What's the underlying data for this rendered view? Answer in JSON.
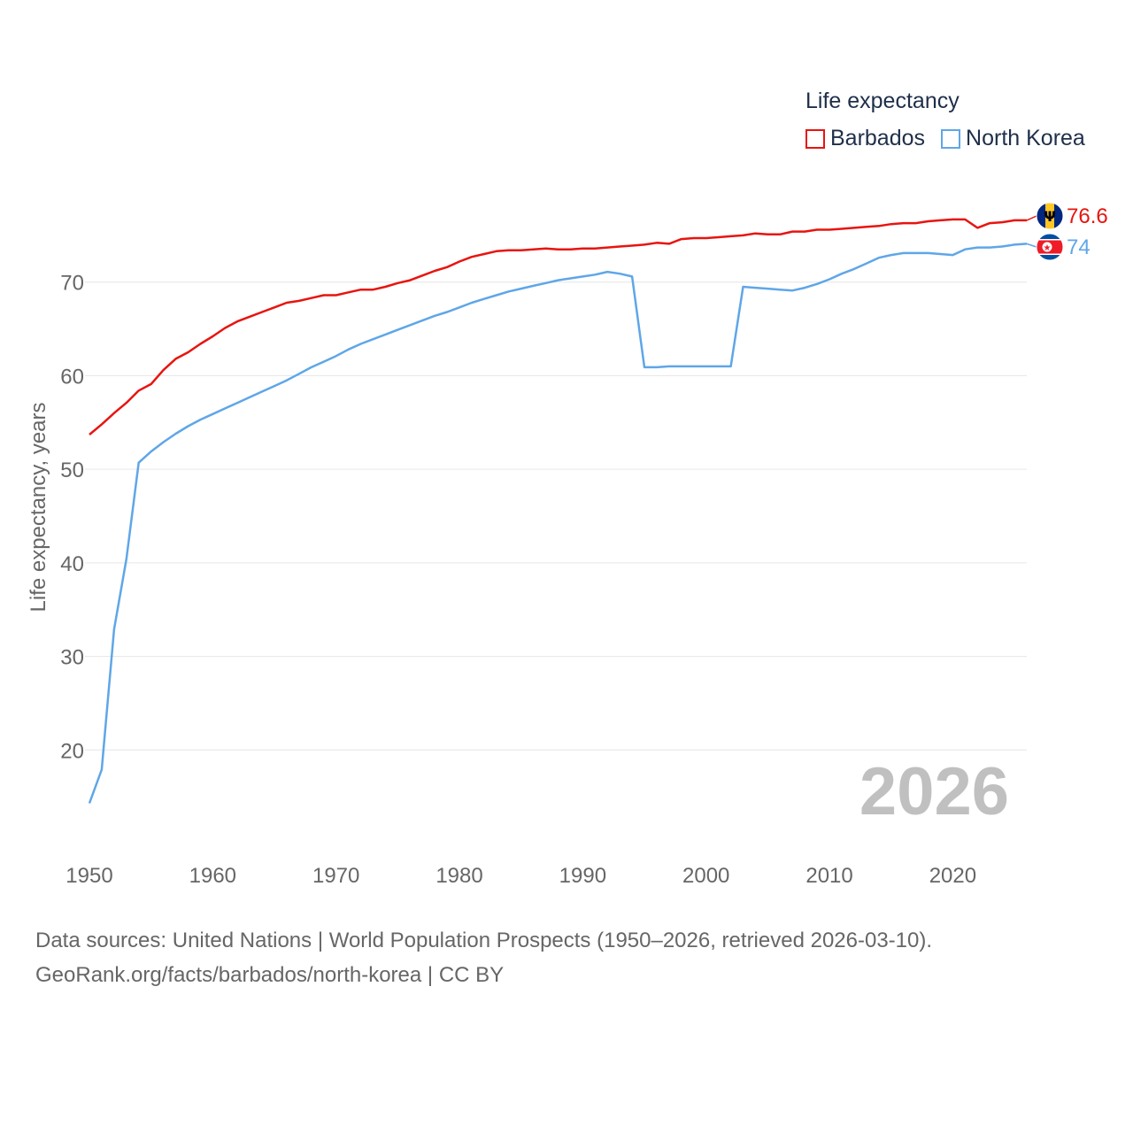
{
  "legend": {
    "title": "Life expectancy",
    "items": [
      {
        "label": "Barbados",
        "color": "#e8140f"
      },
      {
        "label": "North Korea",
        "color": "#5fa6e8"
      }
    ]
  },
  "source": {
    "line1": "Data sources: United Nations | World Population Prospects (1950–2026, retrieved 2026-03-10).",
    "line2": "GeoRank.org/facts/barbados/north-korea | CC BY"
  },
  "chart_data": {
    "type": "line",
    "title": "Life expectancy",
    "xlabel": "",
    "ylabel": "Life expectancy, years",
    "xlim": [
      1950,
      2026
    ],
    "ylim": [
      10,
      80
    ],
    "x_ticks": [
      1950,
      1960,
      1970,
      1980,
      1990,
      2000,
      2010,
      2020
    ],
    "y_ticks": [
      20,
      30,
      40,
      50,
      60,
      70
    ],
    "grid": true,
    "legend_position": "top-right",
    "year_label": "2026",
    "x": [
      1950,
      1951,
      1952,
      1953,
      1954,
      1955,
      1956,
      1957,
      1958,
      1959,
      1960,
      1961,
      1962,
      1963,
      1964,
      1965,
      1966,
      1967,
      1968,
      1969,
      1970,
      1971,
      1972,
      1973,
      1974,
      1975,
      1976,
      1977,
      1978,
      1979,
      1980,
      1981,
      1982,
      1983,
      1984,
      1985,
      1986,
      1987,
      1988,
      1989,
      1990,
      1991,
      1992,
      1993,
      1994,
      1995,
      1996,
      1997,
      1998,
      1999,
      2000,
      2001,
      2002,
      2003,
      2004,
      2005,
      2006,
      2007,
      2008,
      2009,
      2010,
      2011,
      2012,
      2013,
      2014,
      2015,
      2016,
      2017,
      2018,
      2019,
      2020,
      2021,
      2022,
      2023,
      2024,
      2025,
      2026
    ],
    "series": [
      {
        "name": "Barbados",
        "color": "#e8140f",
        "end_label": "76.6",
        "values": [
          53.7,
          54.8,
          56.0,
          57.1,
          58.4,
          59.1,
          60.6,
          61.8,
          62.5,
          63.4,
          64.2,
          65.1,
          65.8,
          66.3,
          66.8,
          67.3,
          67.8,
          68.0,
          68.3,
          68.6,
          68.6,
          68.9,
          69.2,
          69.2,
          69.5,
          69.9,
          70.2,
          70.7,
          71.2,
          71.6,
          72.2,
          72.7,
          73.0,
          73.3,
          73.4,
          73.4,
          73.5,
          73.6,
          73.5,
          73.5,
          73.6,
          73.6,
          73.7,
          73.8,
          73.9,
          74.0,
          74.2,
          74.1,
          74.6,
          74.7,
          74.7,
          74.8,
          74.9,
          75.0,
          75.2,
          75.1,
          75.1,
          75.4,
          75.4,
          75.6,
          75.6,
          75.7,
          75.8,
          75.9,
          76.0,
          76.2,
          76.3,
          76.3,
          76.5,
          76.6,
          76.7,
          76.7,
          75.8,
          76.3,
          76.4,
          76.6,
          76.6
        ]
      },
      {
        "name": "North Korea",
        "color": "#5fa6e8",
        "end_label": "74",
        "values": [
          14.3,
          17.9,
          32.9,
          40.4,
          50.7,
          51.9,
          52.9,
          53.8,
          54.6,
          55.3,
          55.9,
          56.5,
          57.1,
          57.7,
          58.3,
          58.9,
          59.5,
          60.2,
          60.9,
          61.5,
          62.1,
          62.8,
          63.4,
          63.9,
          64.4,
          64.9,
          65.4,
          65.9,
          66.4,
          66.8,
          67.3,
          67.8,
          68.2,
          68.6,
          69.0,
          69.3,
          69.6,
          69.9,
          70.2,
          70.4,
          70.6,
          70.8,
          71.1,
          70.9,
          70.6,
          60.9,
          60.9,
          61.0,
          61.0,
          61.0,
          61.0,
          61.0,
          61.0,
          69.5,
          69.4,
          69.3,
          69.2,
          69.1,
          69.4,
          69.8,
          70.3,
          70.9,
          71.4,
          72.0,
          72.6,
          72.9,
          73.1,
          73.1,
          73.1,
          73.0,
          72.9,
          73.5,
          73.7,
          73.7,
          73.8,
          74.0,
          74.1
        ]
      }
    ]
  }
}
